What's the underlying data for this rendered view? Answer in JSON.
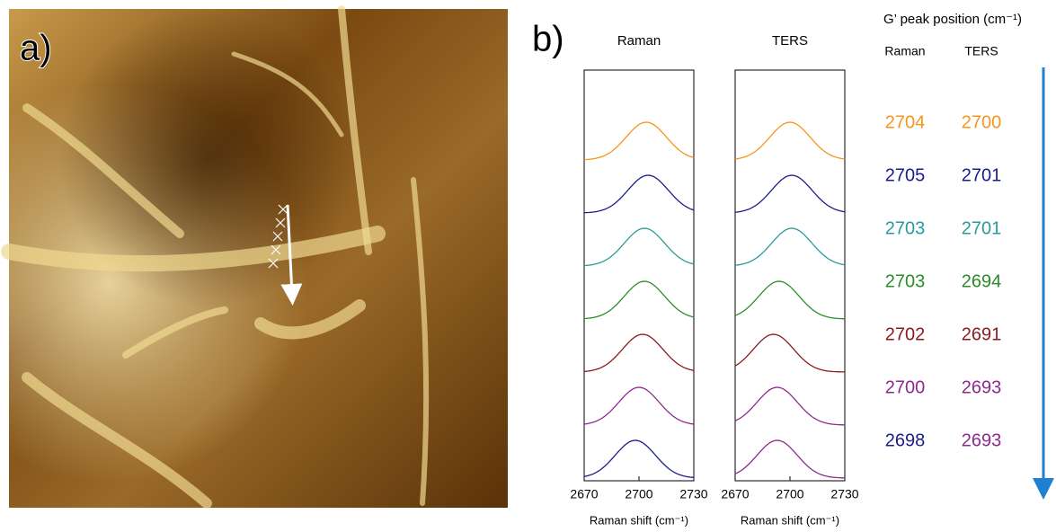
{
  "panel_a": {
    "label": "a)"
  },
  "panel_b": {
    "label": "b)",
    "header": "G’ peak position (cm⁻¹)",
    "columns": [
      "Raman",
      "TERS"
    ]
  },
  "chart_data": [
    {
      "type": "line",
      "title": "Raman",
      "x_label": "Raman shift (cm⁻¹)",
      "xlim": [
        2670,
        2730
      ],
      "xticks": [
        2670,
        2700,
        2730
      ],
      "series": [
        {
          "color": "#f7941d",
          "peak": 2704
        },
        {
          "color": "#1c1c8c",
          "peak": 2705
        },
        {
          "color": "#2a9a9a",
          "peak": 2703
        },
        {
          "color": "#2b8c2b",
          "peak": 2703
        },
        {
          "color": "#8b1a1a",
          "peak": 2702
        },
        {
          "color": "#8e2a8e",
          "peak": 2700
        },
        {
          "color": "#1c1c8c",
          "peak": 2698
        }
      ]
    },
    {
      "type": "line",
      "title": "TERS",
      "x_label": "Raman shift (cm⁻¹)",
      "xlim": [
        2670,
        2730
      ],
      "xticks": [
        2670,
        2700,
        2730
      ],
      "series": [
        {
          "color": "#f7941d",
          "peak": 2700
        },
        {
          "color": "#1c1c8c",
          "peak": 2701
        },
        {
          "color": "#2a9a9a",
          "peak": 2701
        },
        {
          "color": "#2b8c2b",
          "peak": 2694
        },
        {
          "color": "#8b1a1a",
          "peak": 2691
        },
        {
          "color": "#8e2a8e",
          "peak": 2693
        },
        {
          "color": "#8e2a8e",
          "peak": 2693
        }
      ]
    }
  ]
}
